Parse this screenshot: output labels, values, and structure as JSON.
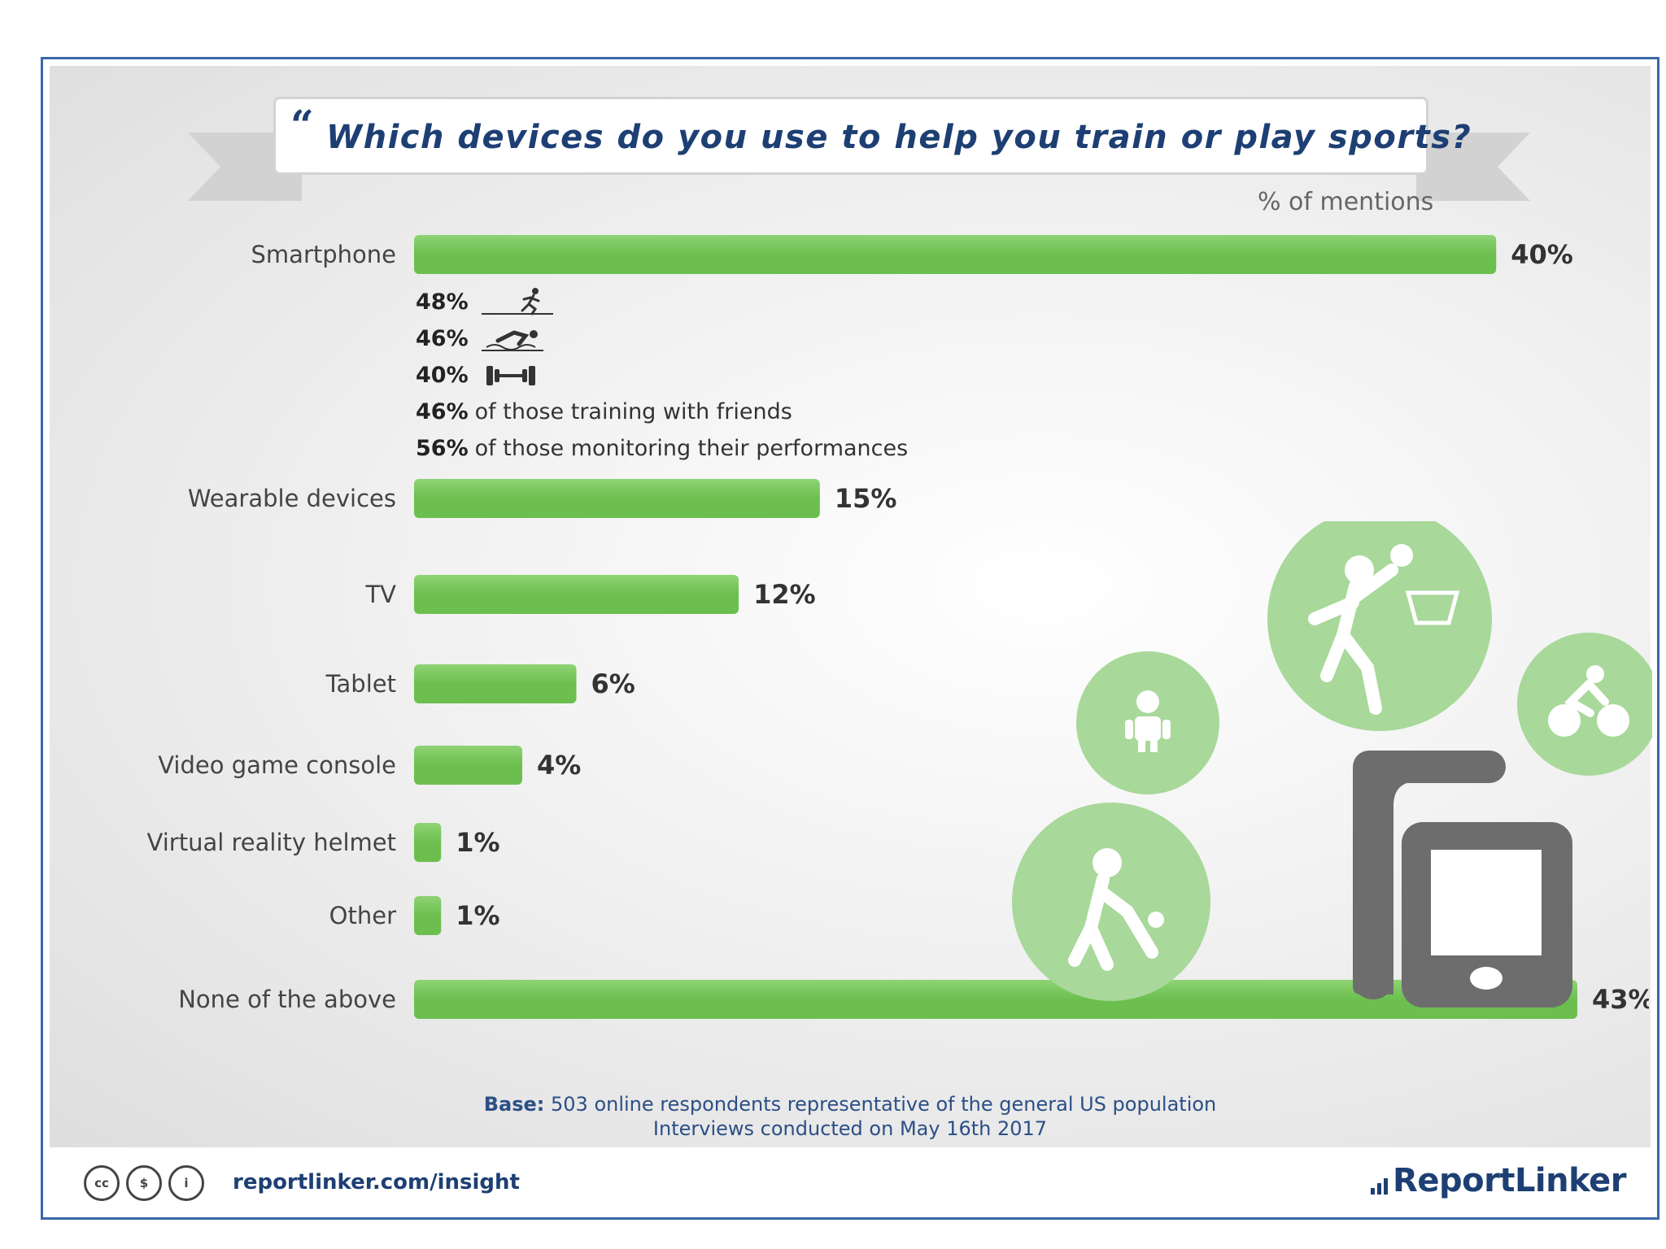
{
  "header": {
    "quote_mark": "“",
    "title": "Which devices do you use to help you train or play sports?"
  },
  "axis_note": "% of mentions",
  "chart_data": {
    "type": "bar",
    "orientation": "horizontal",
    "categories": [
      "Smartphone",
      "Wearable devices",
      "TV",
      "Tablet",
      "Video game console",
      "Virtual reality helmet",
      "Other",
      "None of the above"
    ],
    "values": [
      40,
      15,
      12,
      6,
      4,
      1,
      1,
      43
    ],
    "value_labels": [
      "40%",
      "15%",
      "12%",
      "6%",
      "4%",
      "1%",
      "1%",
      "43%"
    ],
    "unit": "%",
    "grid": false,
    "legend": "none"
  },
  "smartphone_breakdown": [
    {
      "pct": "48%",
      "icon": "running-icon",
      "text": ""
    },
    {
      "pct": "46%",
      "icon": "swimming-icon",
      "text": ""
    },
    {
      "pct": "40%",
      "icon": "dumbbell-icon",
      "text": ""
    },
    {
      "pct": "46%",
      "icon": "",
      "text": "of those training with friends"
    },
    {
      "pct": "56%",
      "icon": "",
      "text": "of those monitoring their performances"
    }
  ],
  "base_note": {
    "label": "Base:",
    "line1": "503 online respondents representative of the general US population",
    "line2": "Interviews conducted on May 16th 2017"
  },
  "footer": {
    "license_icons": [
      "cc-icon",
      "nc-icon",
      "by-icon"
    ],
    "license_glyphs": [
      "cc",
      "$",
      "i"
    ],
    "url": "reportlinker.com/insight",
    "brand": "ReportLinker"
  },
  "colors": {
    "bar": "#6cbf4f",
    "bar_highlight": "#8fd374",
    "title": "#1d3f73",
    "icon_circle": "#a8d89a",
    "device": "#6d6d6d"
  }
}
